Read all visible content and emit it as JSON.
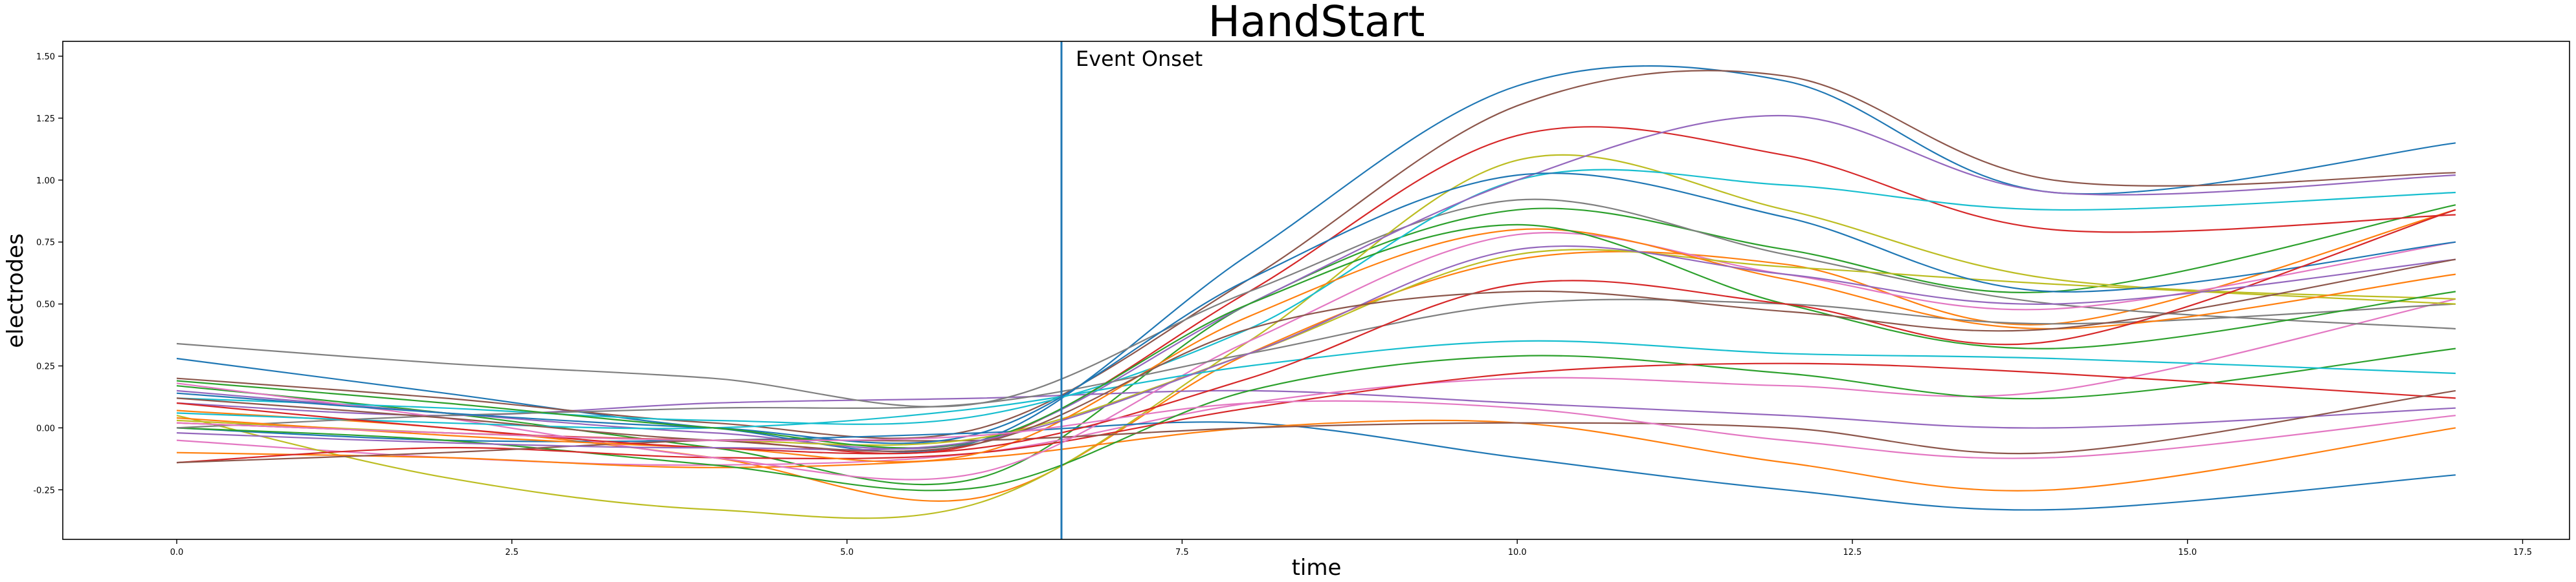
{
  "chart_data": {
    "type": "line",
    "title": "HandStart",
    "xlabel": "time",
    "ylabel": "electrodes",
    "xlim": [
      -0.85,
      17.85
    ],
    "ylim": [
      -0.45,
      1.56
    ],
    "x_ticks": [
      0.0,
      2.5,
      5.0,
      7.5,
      10.0,
      12.5,
      15.0,
      17.5
    ],
    "x_tick_labels": [
      "0.0",
      "2.5",
      "5.0",
      "7.5",
      "10.0",
      "12.5",
      "15.0",
      "17.5"
    ],
    "y_ticks": [
      -0.25,
      0.0,
      0.25,
      0.5,
      0.75,
      1.0,
      1.25,
      1.5
    ],
    "y_tick_labels": [
      "-0.25",
      "0.00",
      "0.25",
      "0.50",
      "0.75",
      "1.00",
      "1.25",
      "1.50"
    ],
    "grid": false,
    "event": {
      "x": 6.6,
      "label": "Event Onset",
      "color": "#1f77b4"
    },
    "x": [
      0,
      2,
      4,
      6,
      8,
      10,
      12,
      14,
      17
    ],
    "series": [
      {
        "color": "#1f77b4",
        "values": [
          0.28,
          0.14,
          0.0,
          -0.05,
          0.7,
          1.38,
          1.4,
          0.95,
          1.15
        ]
      },
      {
        "color": "#ff7f0e",
        "values": [
          0.07,
          0.0,
          -0.12,
          -0.28,
          0.3,
          0.68,
          0.66,
          0.42,
          0.88
        ]
      },
      {
        "color": "#2ca02c",
        "values": [
          0.17,
          0.06,
          -0.08,
          -0.2,
          0.5,
          0.88,
          0.72,
          0.55,
          0.9
        ]
      },
      {
        "color": "#d62728",
        "values": [
          0.02,
          -0.02,
          -0.05,
          -0.06,
          0.55,
          1.18,
          1.1,
          0.8,
          0.86
        ]
      },
      {
        "color": "#9467bd",
        "values": [
          0.1,
          0.05,
          0.1,
          0.12,
          0.15,
          0.1,
          0.05,
          0.0,
          0.08
        ]
      },
      {
        "color": "#8c564b",
        "values": [
          0.2,
          0.12,
          0.02,
          0.0,
          0.6,
          1.3,
          1.42,
          1.0,
          1.03
        ]
      },
      {
        "color": "#e377c2",
        "values": [
          -0.05,
          -0.12,
          -0.15,
          -0.1,
          0.1,
          0.2,
          0.17,
          0.15,
          0.52
        ]
      },
      {
        "color": "#7f7f7f",
        "values": [
          0.34,
          0.26,
          0.2,
          0.1,
          0.55,
          0.92,
          0.7,
          0.5,
          0.4
        ]
      },
      {
        "color": "#bcbd22",
        "values": [
          0.05,
          -0.2,
          -0.33,
          -0.3,
          0.35,
          1.08,
          0.88,
          0.6,
          0.52
        ]
      },
      {
        "color": "#17becf",
        "values": [
          0.12,
          0.08,
          0.03,
          0.05,
          0.4,
          1.0,
          0.98,
          0.88,
          0.95
        ]
      },
      {
        "color": "#1f77b4",
        "values": [
          0.0,
          -0.05,
          -0.05,
          -0.02,
          0.02,
          -0.12,
          -0.25,
          -0.33,
          -0.19
        ]
      },
      {
        "color": "#ff7f0e",
        "values": [
          -0.1,
          -0.12,
          -0.16,
          -0.12,
          0.0,
          0.02,
          -0.14,
          -0.25,
          0.0
        ]
      },
      {
        "color": "#2ca02c",
        "values": [
          0.0,
          -0.05,
          -0.15,
          -0.24,
          0.15,
          0.29,
          0.22,
          0.12,
          0.32
        ]
      },
      {
        "color": "#d62728",
        "values": [
          -0.14,
          -0.08,
          -0.12,
          -0.1,
          0.08,
          0.22,
          0.26,
          0.22,
          0.12
        ]
      },
      {
        "color": "#9467bd",
        "values": [
          0.15,
          0.06,
          -0.02,
          -0.05,
          0.5,
          1.0,
          1.26,
          0.95,
          1.02
        ]
      },
      {
        "color": "#8c564b",
        "values": [
          -0.14,
          -0.1,
          -0.05,
          -0.05,
          0.0,
          0.02,
          0.0,
          -0.1,
          0.15
        ]
      },
      {
        "color": "#e377c2",
        "values": [
          0.18,
          0.04,
          -0.12,
          -0.18,
          0.35,
          0.78,
          0.62,
          0.48,
          0.75
        ]
      },
      {
        "color": "#7f7f7f",
        "values": [
          0.0,
          0.05,
          0.08,
          0.1,
          0.3,
          0.5,
          0.5,
          0.42,
          0.5
        ]
      },
      {
        "color": "#bcbd22",
        "values": [
          0.03,
          -0.02,
          -0.05,
          -0.04,
          0.3,
          0.7,
          0.65,
          0.58,
          0.5
        ]
      },
      {
        "color": "#17becf",
        "values": [
          0.06,
          0.02,
          0.0,
          0.08,
          0.25,
          0.35,
          0.3,
          0.28,
          0.22
        ]
      },
      {
        "color": "#1f77b4",
        "values": [
          0.14,
          0.06,
          0.0,
          -0.02,
          0.6,
          1.02,
          0.85,
          0.55,
          0.75
        ]
      },
      {
        "color": "#ff7f0e",
        "values": [
          0.04,
          -0.03,
          -0.08,
          -0.1,
          0.45,
          0.8,
          0.6,
          0.4,
          0.62
        ]
      },
      {
        "color": "#2ca02c",
        "values": [
          0.19,
          0.1,
          0.0,
          -0.05,
          0.5,
          0.82,
          0.5,
          0.32,
          0.55
        ]
      },
      {
        "color": "#d62728",
        "values": [
          0.1,
          0.0,
          -0.08,
          -0.08,
          0.2,
          0.58,
          0.5,
          0.35,
          0.88
        ]
      },
      {
        "color": "#9467bd",
        "values": [
          -0.02,
          -0.06,
          -0.08,
          -0.05,
          0.3,
          0.72,
          0.62,
          0.5,
          0.68
        ]
      },
      {
        "color": "#8c564b",
        "values": [
          0.12,
          0.04,
          -0.05,
          -0.06,
          0.4,
          0.55,
          0.47,
          0.4,
          0.68
        ]
      },
      {
        "color": "#e377c2",
        "values": [
          0.02,
          -0.02,
          -0.05,
          -0.03,
          0.1,
          0.08,
          -0.05,
          -0.12,
          0.05
        ]
      }
    ]
  }
}
